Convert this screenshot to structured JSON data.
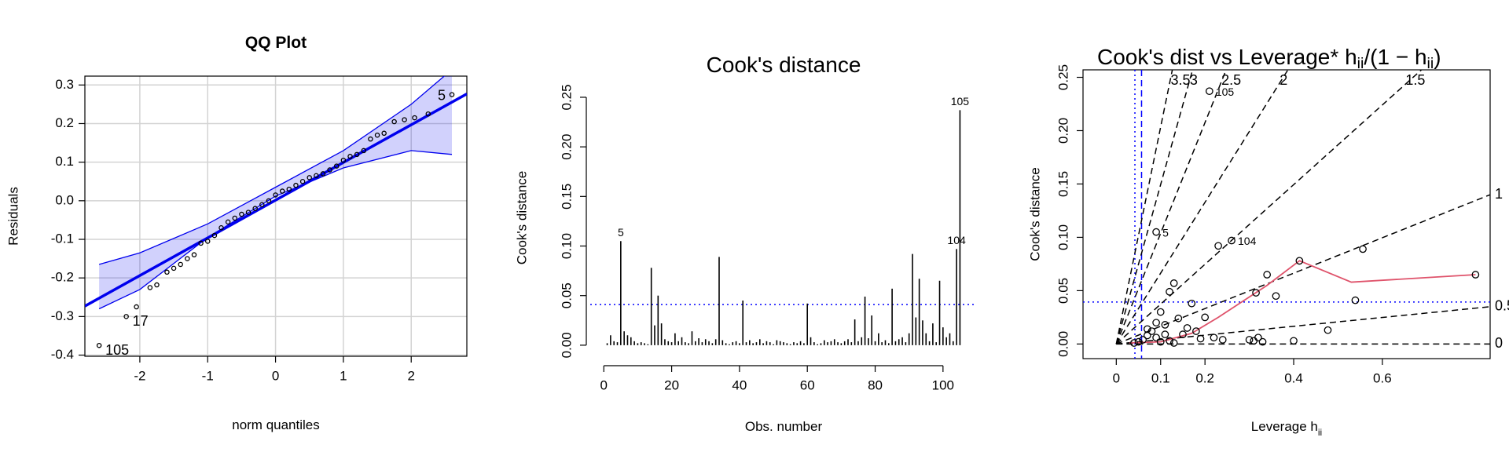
{
  "chart_data": [
    {
      "type": "scatter",
      "title": "QQ Plot",
      "xlabel": "norm quantiles",
      "ylabel": "Residuals",
      "xlim": [
        -2.81,
        2.82
      ],
      "ylim": [
        -0.403,
        0.323
      ],
      "xticks": [
        -2,
        -1,
        0,
        1,
        2
      ],
      "yticks": [
        -0.4,
        -0.3,
        -0.2,
        -0.1,
        {
          "value": 0,
          "label": "0.0"
        },
        0.1,
        0.2,
        0.3
      ],
      "grid": true,
      "color": "#0000ee",
      "point_color": "#000000",
      "x": [
        -2.6,
        -2.2,
        -2.05,
        -1.85,
        -1.75,
        -1.6,
        -1.5,
        -1.4,
        -1.3,
        -1.2,
        -1.1,
        -1.0,
        -0.9,
        -0.8,
        -0.7,
        -0.6,
        -0.5,
        -0.4,
        -0.3,
        -0.2,
        -0.1,
        0,
        0.1,
        0.2,
        0.3,
        0.4,
        0.5,
        0.6,
        0.7,
        0.8,
        0.9,
        1.0,
        1.1,
        1.2,
        1.3,
        1.4,
        1.5,
        1.6,
        1.75,
        1.9,
        2.05,
        2.25,
        2.6
      ],
      "y": [
        -0.375,
        -0.3,
        -0.275,
        -0.225,
        -0.218,
        -0.185,
        -0.175,
        -0.165,
        -0.15,
        -0.14,
        -0.11,
        -0.105,
        -0.09,
        -0.07,
        -0.055,
        -0.045,
        -0.035,
        -0.03,
        -0.02,
        -0.01,
        0.0,
        0.015,
        0.025,
        0.03,
        0.04,
        0.05,
        0.06,
        0.065,
        0.07,
        0.08,
        0.09,
        0.105,
        0.115,
        0.12,
        0.13,
        0.16,
        0.17,
        0.175,
        0.205,
        0.21,
        0.215,
        0.225,
        0.275
      ],
      "point_labels": [
        "105",
        "17",
        null,
        null,
        null,
        null,
        null,
        null,
        null,
        null,
        null,
        null,
        null,
        null,
        null,
        null,
        null,
        null,
        null,
        null,
        null,
        null,
        null,
        null,
        null,
        null,
        null,
        null,
        null,
        null,
        null,
        null,
        null,
        null,
        null,
        null,
        null,
        null,
        null,
        null,
        null,
        null,
        "5"
      ],
      "fit_line": {
        "x": [
          -2.81,
          2.82
        ],
        "y": [
          -0.273,
          0.277
        ]
      },
      "band": {
        "x": [
          -2.6,
          -2,
          -1,
          0,
          1,
          2,
          2.6
        ],
        "upper": [
          -0.165,
          -0.135,
          -0.06,
          0.035,
          0.13,
          0.25,
          0.34
        ],
        "lower": [
          -0.28,
          -0.23,
          -0.095,
          0.012,
          0.085,
          0.13,
          0.12
        ]
      }
    },
    {
      "type": "bar",
      "title": "Cook's distance",
      "xlabel": "Obs. number",
      "ylabel": "Cook's distance",
      "xlim": [
        -4,
        110
      ],
      "ylim": [
        -0.008,
        0.265
      ],
      "xticks": [
        0,
        20,
        40,
        60,
        80,
        100
      ],
      "yticks": [
        {
          "value": 0,
          "label": "0.00"
        },
        {
          "value": 0.05,
          "label": "0.05"
        },
        {
          "value": 0.1,
          "label": "0.10"
        },
        {
          "value": 0.15,
          "label": "0.15"
        },
        {
          "value": 0.2,
          "label": "0.20"
        },
        {
          "value": 0.25,
          "label": "0.25"
        }
      ],
      "color": "#000000",
      "ref_color": "#0000ff",
      "hlines": [
        {
          "value": 0.041,
          "style": "dotted"
        }
      ],
      "x": [
        1,
        2,
        3,
        4,
        5,
        6,
        7,
        8,
        9,
        10,
        11,
        12,
        13,
        14,
        15,
        16,
        17,
        18,
        19,
        20,
        21,
        22,
        23,
        24,
        25,
        26,
        27,
        28,
        29,
        30,
        31,
        32,
        33,
        34,
        35,
        36,
        37,
        38,
        39,
        40,
        41,
        42,
        43,
        44,
        45,
        46,
        47,
        48,
        49,
        50,
        51,
        52,
        53,
        54,
        55,
        56,
        57,
        58,
        59,
        60,
        61,
        62,
        63,
        64,
        65,
        66,
        67,
        68,
        69,
        70,
        71,
        72,
        73,
        74,
        75,
        76,
        77,
        78,
        79,
        80,
        81,
        82,
        83,
        84,
        85,
        86,
        87,
        88,
        89,
        90,
        91,
        92,
        93,
        94,
        95,
        96,
        97,
        98,
        99,
        100,
        101,
        102,
        103,
        104,
        105
      ],
      "values": [
        0.002,
        0.01,
        0.004,
        0.003,
        0.105,
        0.014,
        0.01,
        0.008,
        0.004,
        0.002,
        0.003,
        0.002,
        0.001,
        0.078,
        0.02,
        0.05,
        0.022,
        0.006,
        0.004,
        0.003,
        0.012,
        0.004,
        0.008,
        0.003,
        0.002,
        0.014,
        0.004,
        0.007,
        0.003,
        0.006,
        0.004,
        0.002,
        0.006,
        0.089,
        0.005,
        0.002,
        0.001,
        0.003,
        0.004,
        0.002,
        0.045,
        0.003,
        0.005,
        0.002,
        0.003,
        0.006,
        0.002,
        0.004,
        0.003,
        0.001,
        0.005,
        0.004,
        0.003,
        0.002,
        0.001,
        0.003,
        0.002,
        0.004,
        0.002,
        0.042,
        0.008,
        0.003,
        0.001,
        0.002,
        0.005,
        0.003,
        0.004,
        0.006,
        0.003,
        0.002,
        0.004,
        0.006,
        0.003,
        0.026,
        0.004,
        0.008,
        0.049,
        0.007,
        0.03,
        0.004,
        0.012,
        0.003,
        0.005,
        0.002,
        0.057,
        0.004,
        0.006,
        0.008,
        0.003,
        0.012,
        0.092,
        0.028,
        0.067,
        0.025,
        0.012,
        0.004,
        0.022,
        0.003,
        0.065,
        0.018,
        0.008,
        0.012,
        0.004,
        0.097,
        0.237
      ],
      "point_labels": [
        null,
        null,
        null,
        null,
        "5",
        null,
        null,
        null,
        null,
        null,
        null,
        null,
        null,
        null,
        null,
        null,
        null,
        null,
        null,
        null,
        null,
        null,
        null,
        null,
        null,
        null,
        null,
        null,
        null,
        null,
        null,
        null,
        null,
        null,
        null,
        null,
        null,
        null,
        null,
        null,
        null,
        null,
        null,
        null,
        null,
        null,
        null,
        null,
        null,
        null,
        null,
        null,
        null,
        null,
        null,
        null,
        null,
        null,
        null,
        null,
        null,
        null,
        null,
        null,
        null,
        null,
        null,
        null,
        null,
        null,
        null,
        null,
        null,
        null,
        null,
        null,
        null,
        null,
        null,
        null,
        null,
        null,
        null,
        null,
        null,
        null,
        null,
        null,
        null,
        null,
        null,
        null,
        null,
        null,
        null,
        null,
        null,
        null,
        null,
        null,
        null,
        null,
        null,
        "104",
        "105"
      ]
    },
    {
      "type": "scatter",
      "title": "Cook's dist vs Leverage* ",
      "title_math": [
        "h",
        "ii",
        "/(1 − h",
        "ii",
        ")"
      ],
      "xlabel": "Leverage  ",
      "xlabel_math": [
        "h",
        "ii"
      ],
      "ylabel": "Cook's distance",
      "xlim": [
        -0.075,
        0.843
      ],
      "ylim": [
        -0.0137,
        0.257
      ],
      "xticks": [
        0,
        0.1,
        0.2,
        0.4,
        0.6
      ],
      "yticks": [
        {
          "value": 0,
          "label": "0.00"
        },
        {
          "value": 0.05,
          "label": "0.05"
        },
        {
          "value": 0.1,
          "label": "0.10"
        },
        {
          "value": 0.15,
          "label": "0.15"
        },
        {
          "value": 0.2,
          "label": "0.20"
        },
        {
          "value": 0.25,
          "label": "0.25"
        }
      ],
      "point_color": "#000000",
      "ref_color": "#0000ff",
      "hlines": [
        {
          "value": 0.0394,
          "style": "dotted"
        }
      ],
      "vlines": [
        {
          "value": 0.042,
          "style": "dotted"
        },
        {
          "value": 0.057,
          "style": "dashed"
        }
      ],
      "contours": [
        0,
        0.5,
        1,
        1.5,
        2,
        2.5,
        3,
        3.5
      ],
      "x": [
        0.21,
        0.09,
        0.26,
        0.413,
        0.556,
        0.81,
        0.539,
        0.477,
        0.4,
        0.34,
        0.315,
        0.36,
        0.23,
        0.2,
        0.17,
        0.13,
        0.12,
        0.1,
        0.11,
        0.14,
        0.16,
        0.15,
        0.18,
        0.19,
        0.22,
        0.24,
        0.3,
        0.32,
        0.33,
        0.31,
        0.07,
        0.08,
        0.06,
        0.05,
        0.04,
        0.09,
        0.1,
        0.12,
        0.13,
        0.11,
        0.07,
        0.09
      ],
      "y": [
        0.237,
        0.105,
        0.097,
        0.078,
        0.089,
        0.065,
        0.041,
        0.013,
        0.003,
        0.065,
        0.048,
        0.045,
        0.092,
        0.025,
        0.038,
        0.057,
        0.049,
        0.03,
        0.018,
        0.024,
        0.015,
        0.009,
        0.012,
        0.005,
        0.006,
        0.004,
        0.004,
        0.006,
        0.002,
        0.003,
        0.008,
        0.012,
        0.004,
        0.002,
        0.001,
        0.006,
        0.002,
        0.003,
        0.001,
        0.009,
        0.014,
        0.02
      ],
      "point_labels": [
        "105",
        "5",
        "104",
        null,
        null,
        null,
        null,
        null,
        null,
        null,
        null,
        null,
        null,
        null,
        null,
        null,
        null,
        null,
        null,
        null,
        null,
        null,
        null,
        null,
        null,
        null,
        null,
        null,
        null,
        null,
        null,
        null,
        null,
        null,
        null,
        null,
        null,
        null,
        null,
        null,
        null,
        null
      ],
      "smooth": {
        "color": "#df536b",
        "x": [
          0.03,
          0.1,
          0.17,
          0.23,
          0.34,
          0.413,
          0.53,
          0.81
        ],
        "y": [
          0.001,
          0.002,
          0.01,
          0.025,
          0.055,
          0.078,
          0.058,
          0.065
        ]
      }
    }
  ]
}
